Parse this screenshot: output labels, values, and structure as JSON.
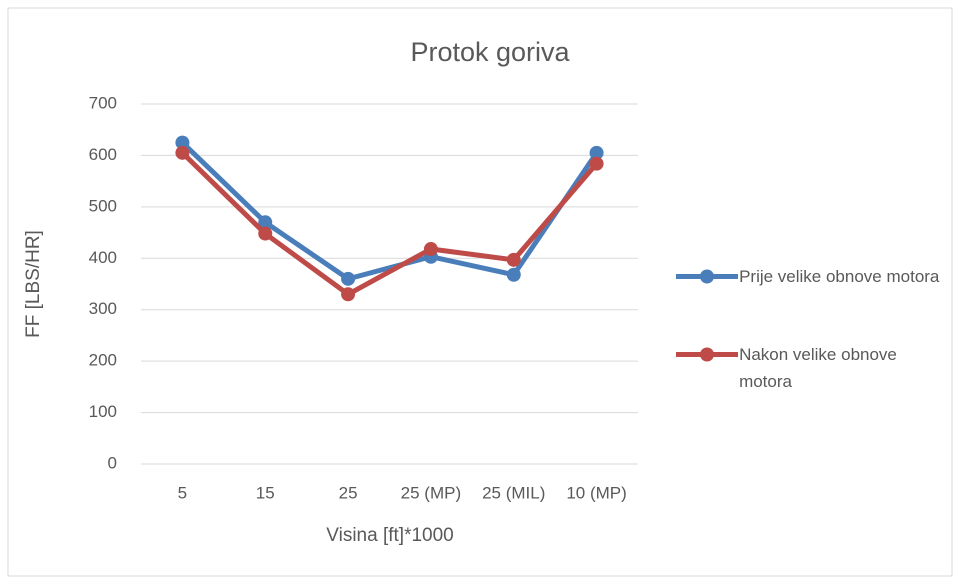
{
  "chart_data": {
    "type": "line",
    "title": "Protok goriva",
    "x_label": "Visina [ft]*1000",
    "y_label": "FF [LBS/HR]",
    "categories": [
      "5",
      "15",
      "25",
      "25 (MP)",
      "25 (MIL)",
      "10 (MP)"
    ],
    "series": [
      {
        "name": "Prije velike obnove motora",
        "color": "#4a7ebb",
        "values": [
          625,
          470,
          360,
          403,
          368,
          605
        ]
      },
      {
        "name": "Nakon velike obnove motora",
        "color": "#be4b48",
        "values": [
          605,
          448,
          330,
          418,
          397,
          584
        ]
      }
    ],
    "ylim": [
      0,
      700
    ],
    "yticks": [
      0,
      100,
      200,
      300,
      400,
      500,
      600,
      700
    ],
    "grid": true,
    "legend": "right"
  }
}
